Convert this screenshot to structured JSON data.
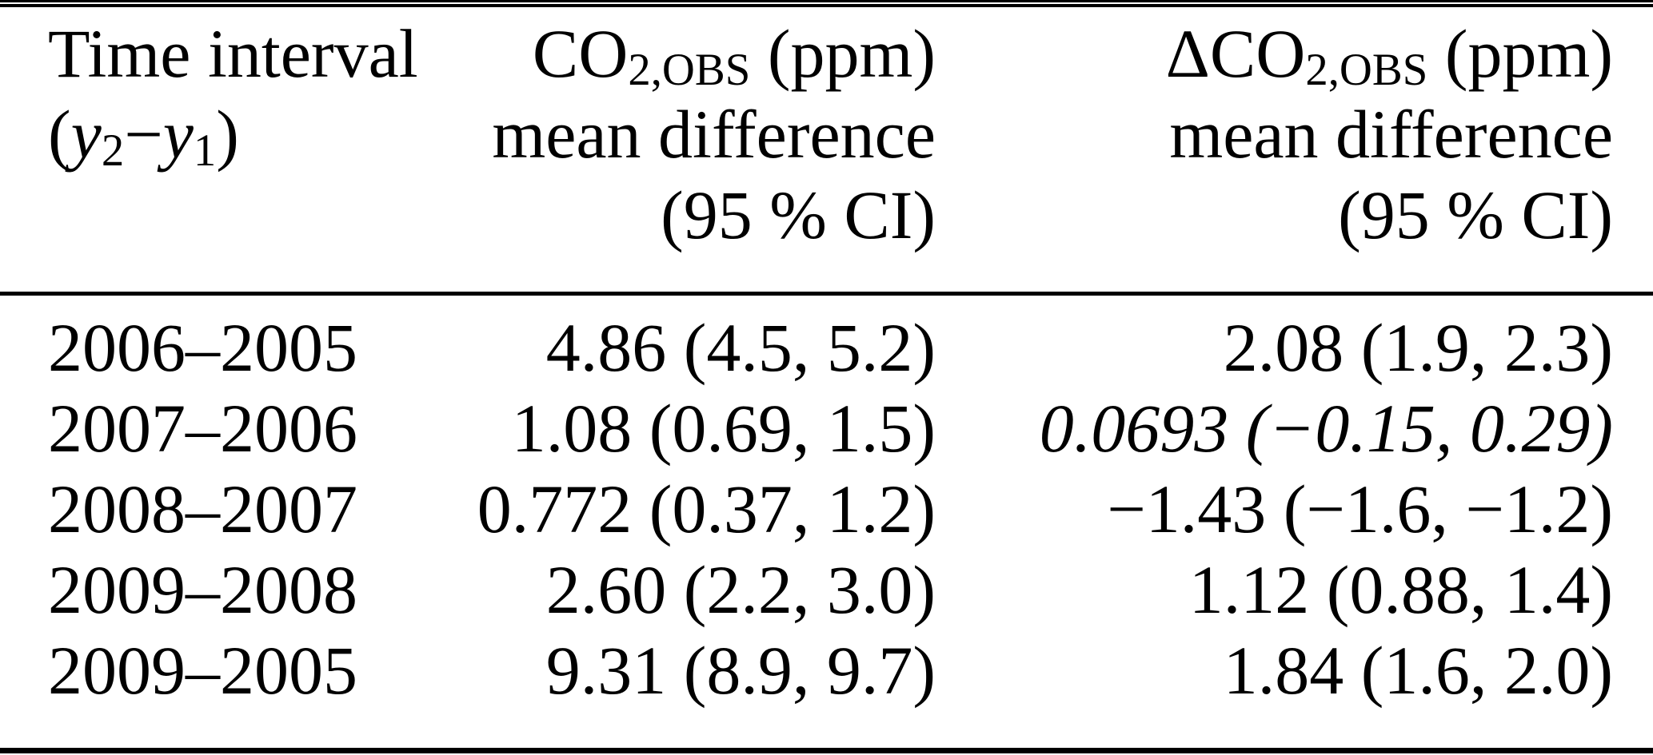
{
  "table": {
    "header": {
      "time": {
        "line1": "Time interval",
        "open": "(",
        "var_a": "y",
        "sub_a": "2",
        "minus": "−",
        "var_b": "y",
        "sub_b": "1",
        "close": ")"
      },
      "co2": {
        "prefix": "CO",
        "sub": "2,OBS",
        "unit": " (ppm)",
        "line2": "mean difference",
        "line3": "(95 % CI)"
      },
      "dco2": {
        "prefix": "ΔCO",
        "sub": "2,OBS",
        "unit": " (ppm)",
        "line2": "mean difference",
        "line3": "(95 % CI)"
      }
    },
    "rows": [
      {
        "interval": "2006–2005",
        "co2": "4.86 (4.5, 5.2)",
        "dco2": "2.08 (1.9, 2.3)",
        "dco2_italic": false
      },
      {
        "interval": "2007–2006",
        "co2": "1.08 (0.69, 1.5)",
        "dco2": "0.0693 (−0.15, 0.29)",
        "dco2_italic": true
      },
      {
        "interval": "2008–2007",
        "co2": "0.772 (0.37, 1.2)",
        "dco2": "−1.43 (−1.6, −1.2)",
        "dco2_italic": false
      },
      {
        "interval": "2009–2008",
        "co2": "2.60 (2.2, 3.0)",
        "dco2": "1.12 (0.88, 1.4)",
        "dco2_italic": false
      },
      {
        "interval": "2009–2005",
        "co2": "9.31 (8.9, 9.7)",
        "dco2": "1.84 (1.6, 2.0)",
        "dco2_italic": false
      }
    ],
    "colors": {
      "text": "#000000",
      "background": "#ffffff",
      "rule": "#000000"
    }
  }
}
